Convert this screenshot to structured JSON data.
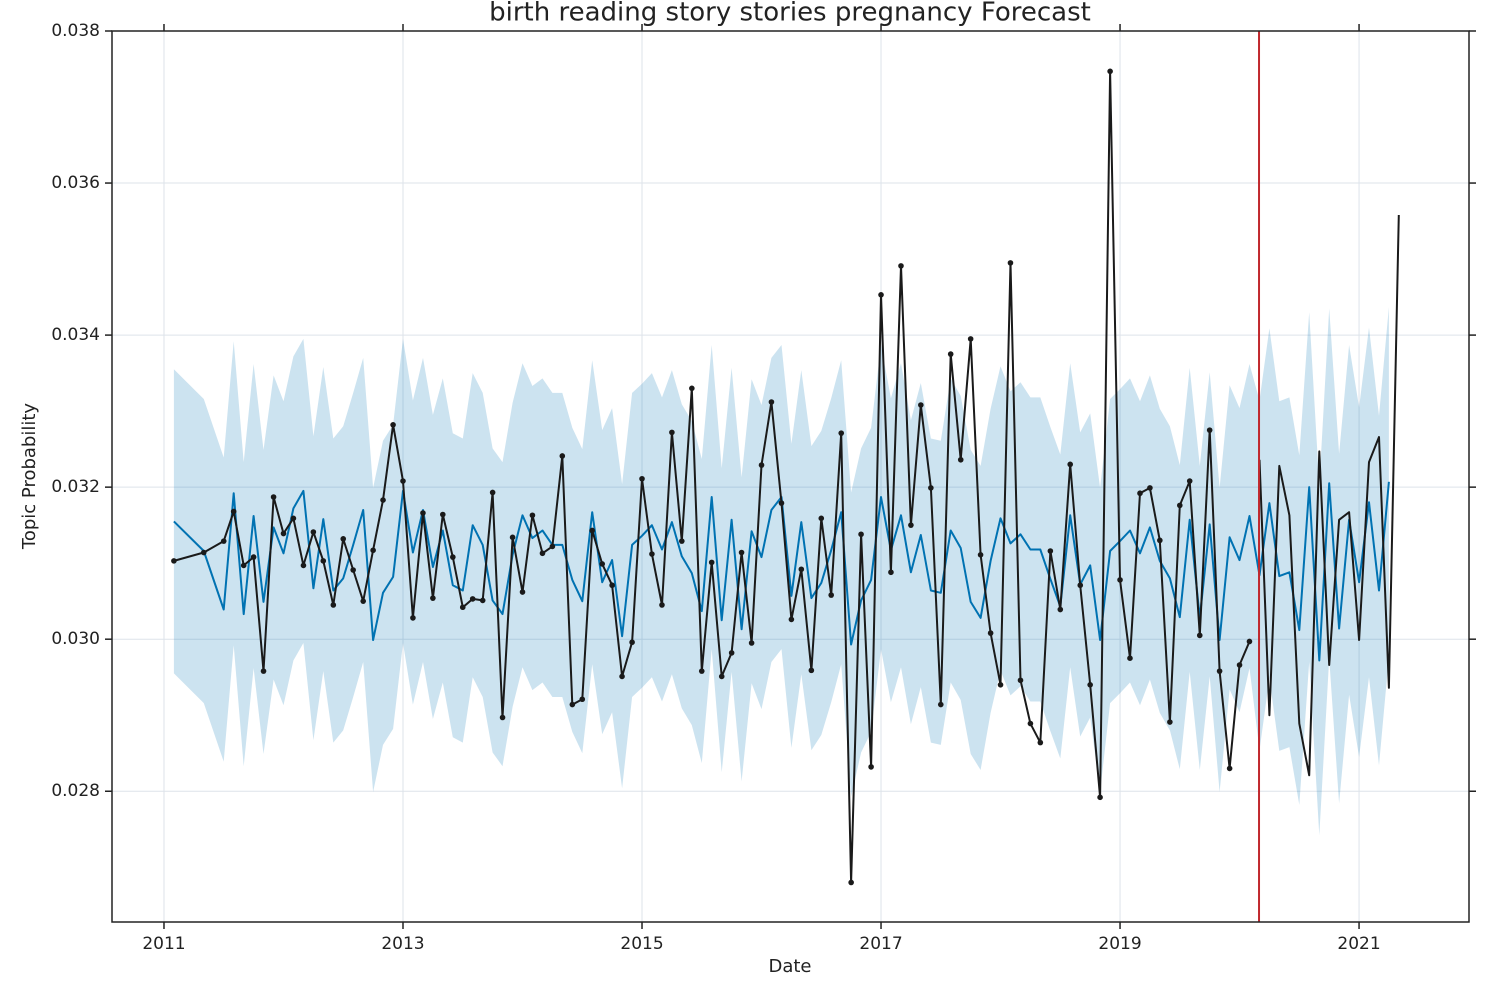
{
  "chart_data": {
    "type": "line",
    "title": "birth reading story stories pregnancy Forecast",
    "xlabel": "Date",
    "ylabel": "Topic Probability",
    "xlim": [
      2010.565,
      2021.92
    ],
    "ylim": [
      0.02628,
      0.038
    ],
    "xticks": [
      2011,
      2013,
      2015,
      2017,
      2019,
      2021
    ],
    "yticks": [
      0.028,
      {
        "value": 0.03,
        "label": "0.030"
      },
      0.032,
      0.034,
      0.036,
      0.038
    ],
    "grid": true,
    "band": {
      "color": "#0072b2",
      "opacity": 0.2,
      "x": [
        2011.083,
        2011.333,
        2011.5,
        2011.583,
        2011.667,
        2011.75,
        2011.833,
        2011.917,
        2012,
        2012.083,
        2012.167,
        2012.25,
        2012.333,
        2012.417,
        2012.5,
        2012.583,
        2012.667,
        2012.75,
        2012.833,
        2012.917,
        2013,
        2013.083,
        2013.167,
        2013.25,
        2013.333,
        2013.417,
        2013.5,
        2013.583,
        2013.667,
        2013.75,
        2013.833,
        2013.917,
        2014,
        2014.083,
        2014.167,
        2014.25,
        2014.333,
        2014.417,
        2014.5,
        2014.583,
        2014.667,
        2014.75,
        2014.833,
        2014.917,
        2015,
        2015.083,
        2015.167,
        2015.25,
        2015.333,
        2015.417,
        2015.5,
        2015.583,
        2015.667,
        2015.75,
        2015.833,
        2015.917,
        2016,
        2016.083,
        2016.167,
        2016.25,
        2016.333,
        2016.417,
        2016.5,
        2016.583,
        2016.667,
        2016.75,
        2016.833,
        2016.917,
        2017,
        2017.083,
        2017.167,
        2017.25,
        2017.333,
        2017.417,
        2017.5,
        2017.583,
        2017.667,
        2017.75,
        2017.833,
        2017.917,
        2018,
        2018.083,
        2018.167,
        2018.25,
        2018.333,
        2018.417,
        2018.5,
        2018.583,
        2018.667,
        2018.75,
        2018.833,
        2018.917,
        2019,
        2019.083,
        2019.167,
        2019.25,
        2019.333,
        2019.417,
        2019.5,
        2019.583,
        2019.667,
        2019.75,
        2019.833,
        2019.917,
        2020,
        2020.083,
        2020.167,
        2020.25,
        2020.333,
        2020.417,
        2020.5,
        2020.583,
        2020.667,
        2020.75,
        2020.833,
        2020.917,
        2021,
        2021.083,
        2021.167,
        2021.25
      ],
      "upper": [
        0.03355,
        0.03316,
        0.03239,
        0.03392,
        0.03233,
        0.03362,
        0.03249,
        0.03347,
        0.03313,
        0.03372,
        0.03395,
        0.03267,
        0.03358,
        0.03264,
        0.0328,
        0.03324,
        0.0337,
        0.03199,
        0.03261,
        0.03282,
        0.03395,
        0.03314,
        0.0337,
        0.03295,
        0.03343,
        0.03271,
        0.03264,
        0.0335,
        0.03324,
        0.03251,
        0.03233,
        0.03311,
        0.03363,
        0.03333,
        0.03343,
        0.03324,
        0.03324,
        0.03278,
        0.0325,
        0.03367,
        0.03275,
        0.03304,
        0.03204,
        0.03324,
        0.03336,
        0.0335,
        0.03318,
        0.03354,
        0.03309,
        0.03287,
        0.03237,
        0.03387,
        0.03225,
        0.03357,
        0.03213,
        0.03342,
        0.03308,
        0.0337,
        0.03387,
        0.03257,
        0.03354,
        0.03254,
        0.03274,
        0.03317,
        0.03367,
        0.03193,
        0.03251,
        0.03278,
        0.03387,
        0.03317,
        0.03363,
        0.03288,
        0.03337,
        0.03264,
        0.03261,
        0.03343,
        0.0332,
        0.03249,
        0.03228,
        0.03303,
        0.03359,
        0.03326,
        0.03338,
        0.03318,
        0.03318,
        0.03279,
        0.03243,
        0.03363,
        0.03272,
        0.03297,
        0.03199,
        0.03316,
        0.03329,
        0.03343,
        0.03313,
        0.03347,
        0.03303,
        0.0328,
        0.03229,
        0.03357,
        0.03228,
        0.03351,
        0.03199,
        0.03334,
        0.03304,
        0.03362,
        0.03314,
        0.03409,
        0.03313,
        0.03318,
        0.03242,
        0.0343,
        0.03202,
        0.03435,
        0.03244,
        0.03387,
        0.03305,
        0.0341,
        0.03294,
        0.03437
      ],
      "lower": [
        0.02955,
        0.02916,
        0.02839,
        0.02992,
        0.02833,
        0.02962,
        0.02849,
        0.02947,
        0.02913,
        0.02972,
        0.02995,
        0.02867,
        0.02958,
        0.02864,
        0.0288,
        0.02924,
        0.0297,
        0.02799,
        0.02861,
        0.02882,
        0.02995,
        0.02914,
        0.0297,
        0.02895,
        0.02943,
        0.02871,
        0.02864,
        0.0295,
        0.02924,
        0.02851,
        0.02833,
        0.02911,
        0.02963,
        0.02933,
        0.02943,
        0.02924,
        0.02924,
        0.02878,
        0.0285,
        0.02967,
        0.02875,
        0.02904,
        0.02804,
        0.02924,
        0.02936,
        0.0295,
        0.02918,
        0.02954,
        0.02909,
        0.02887,
        0.02837,
        0.02987,
        0.02825,
        0.02957,
        0.02813,
        0.02942,
        0.02908,
        0.0297,
        0.02987,
        0.02857,
        0.02954,
        0.02854,
        0.02874,
        0.02917,
        0.02967,
        0.02793,
        0.02851,
        0.02878,
        0.02987,
        0.02917,
        0.02963,
        0.02888,
        0.02937,
        0.02864,
        0.02861,
        0.02943,
        0.0292,
        0.02849,
        0.02828,
        0.02903,
        0.02959,
        0.02926,
        0.02938,
        0.02918,
        0.02918,
        0.02879,
        0.02843,
        0.02963,
        0.02872,
        0.02897,
        0.02799,
        0.02916,
        0.02929,
        0.02943,
        0.02913,
        0.02947,
        0.02903,
        0.0288,
        0.02829,
        0.02957,
        0.02828,
        0.02951,
        0.02799,
        0.02934,
        0.02904,
        0.02962,
        0.02854,
        0.02949,
        0.02853,
        0.02858,
        0.02782,
        0.0297,
        0.02742,
        0.02975,
        0.02784,
        0.02927,
        0.02845,
        0.0295,
        0.02834,
        0.02977
      ]
    },
    "series": [
      {
        "color": "#0072b2",
        "markers": false,
        "x": [
          2011.083,
          2011.333,
          2011.5,
          2011.583,
          2011.667,
          2011.75,
          2011.833,
          2011.917,
          2012,
          2012.083,
          2012.167,
          2012.25,
          2012.333,
          2012.417,
          2012.5,
          2012.583,
          2012.667,
          2012.75,
          2012.833,
          2012.917,
          2013,
          2013.083,
          2013.167,
          2013.25,
          2013.333,
          2013.417,
          2013.5,
          2013.583,
          2013.667,
          2013.75,
          2013.833,
          2013.917,
          2014,
          2014.083,
          2014.167,
          2014.25,
          2014.333,
          2014.417,
          2014.5,
          2014.583,
          2014.667,
          2014.75,
          2014.833,
          2014.917,
          2015,
          2015.083,
          2015.167,
          2015.25,
          2015.333,
          2015.417,
          2015.5,
          2015.583,
          2015.667,
          2015.75,
          2015.833,
          2015.917,
          2016,
          2016.083,
          2016.167,
          2016.25,
          2016.333,
          2016.417,
          2016.5,
          2016.583,
          2016.667,
          2016.75,
          2016.833,
          2016.917,
          2017,
          2017.083,
          2017.167,
          2017.25,
          2017.333,
          2017.417,
          2017.5,
          2017.583,
          2017.667,
          2017.75,
          2017.833,
          2017.917,
          2018,
          2018.083,
          2018.167,
          2018.25,
          2018.333,
          2018.417,
          2018.5,
          2018.583,
          2018.667,
          2018.75,
          2018.833,
          2018.917,
          2019,
          2019.083,
          2019.167,
          2019.25,
          2019.333,
          2019.417,
          2019.5,
          2019.583,
          2019.667,
          2019.75,
          2019.833,
          2019.917,
          2020,
          2020.083,
          2020.167,
          2020.25,
          2020.333,
          2020.417,
          2020.5,
          2020.583,
          2020.667,
          2020.75,
          2020.833,
          2020.917,
          2021,
          2021.083,
          2021.167,
          2021.25
        ],
        "values": [
          0.03155,
          0.03116,
          0.03039,
          0.03192,
          0.03033,
          0.03162,
          0.03049,
          0.03147,
          0.03113,
          0.03172,
          0.03195,
          0.03067,
          0.03158,
          0.03064,
          0.0308,
          0.03124,
          0.0317,
          0.02999,
          0.03061,
          0.03082,
          0.03195,
          0.03114,
          0.0317,
          0.03095,
          0.03143,
          0.03071,
          0.03064,
          0.0315,
          0.03124,
          0.03051,
          0.03033,
          0.03111,
          0.03163,
          0.03133,
          0.03143,
          0.03124,
          0.03124,
          0.03078,
          0.0305,
          0.03167,
          0.03075,
          0.03104,
          0.03004,
          0.03124,
          0.03136,
          0.0315,
          0.03118,
          0.03154,
          0.03109,
          0.03087,
          0.03037,
          0.03187,
          0.03025,
          0.03157,
          0.03013,
          0.03142,
          0.03108,
          0.0317,
          0.03187,
          0.03057,
          0.03154,
          0.03054,
          0.03074,
          0.03117,
          0.03167,
          0.02993,
          0.03051,
          0.03078,
          0.03187,
          0.03117,
          0.03163,
          0.03088,
          0.03137,
          0.03064,
          0.03061,
          0.03143,
          0.0312,
          0.03049,
          0.03028,
          0.03103,
          0.03159,
          0.03126,
          0.03138,
          0.03118,
          0.03118,
          0.03079,
          0.03043,
          0.03163,
          0.03072,
          0.03097,
          0.02999,
          0.03116,
          0.03129,
          0.03143,
          0.03113,
          0.03147,
          0.03103,
          0.0308,
          0.03029,
          0.03157,
          0.03028,
          0.03151,
          0.02999,
          0.03134,
          0.03104,
          0.03162,
          0.03084,
          0.03179,
          0.03083,
          0.03088,
          0.03012,
          0.032,
          0.02972,
          0.03205,
          0.03014,
          0.03157,
          0.03075,
          0.0318,
          0.03064,
          0.03207
        ]
      },
      {
        "color": "#1a1a1a",
        "markers": true,
        "x": [
          2011.083,
          2011.333,
          2011.5,
          2011.583,
          2011.667,
          2011.75,
          2011.833,
          2011.917,
          2012,
          2012.083,
          2012.167,
          2012.25,
          2012.333,
          2012.417,
          2012.5,
          2012.583,
          2012.667,
          2012.75,
          2012.833,
          2012.917,
          2013,
          2013.083,
          2013.167,
          2013.25,
          2013.333,
          2013.417,
          2013.5,
          2013.583,
          2013.667,
          2013.75,
          2013.833,
          2013.917,
          2014,
          2014.083,
          2014.167,
          2014.25,
          2014.333,
          2014.417,
          2014.5,
          2014.583,
          2014.667,
          2014.75,
          2014.833,
          2014.917,
          2015,
          2015.083,
          2015.167,
          2015.25,
          2015.333,
          2015.417,
          2015.5,
          2015.583,
          2015.667,
          2015.75,
          2015.833,
          2015.917,
          2016,
          2016.083,
          2016.167,
          2016.25,
          2016.333,
          2016.417,
          2016.5,
          2016.583,
          2016.667,
          2016.75,
          2016.833,
          2016.917,
          2017,
          2017.083,
          2017.167,
          2017.25,
          2017.333,
          2017.417,
          2017.5,
          2017.583,
          2017.667,
          2017.75,
          2017.833,
          2017.917,
          2018,
          2018.083,
          2018.167,
          2018.25,
          2018.333,
          2018.417,
          2018.5,
          2018.583,
          2018.667,
          2018.75,
          2018.833,
          2018.917,
          2019,
          2019.083,
          2019.167,
          2019.25,
          2019.333,
          2019.417,
          2019.5,
          2019.583,
          2019.667,
          2019.75,
          2019.833,
          2019.917,
          2020,
          2020.083
        ],
        "values": [
          0.03103,
          0.03114,
          0.03129,
          0.03168,
          0.03097,
          0.03108,
          0.02958,
          0.03187,
          0.03139,
          0.03159,
          0.03097,
          0.03141,
          0.03103,
          0.03045,
          0.03132,
          0.03091,
          0.0305,
          0.03117,
          0.03183,
          0.03282,
          0.03208,
          0.03028,
          0.03166,
          0.03054,
          0.03164,
          0.03108,
          0.03042,
          0.03053,
          0.03051,
          0.03193,
          0.02897,
          0.03134,
          0.03062,
          0.03163,
          0.03113,
          0.03122,
          0.03241,
          0.02914,
          0.02921,
          0.03143,
          0.03099,
          0.03071,
          0.02951,
          0.02996,
          0.03211,
          0.03112,
          0.03045,
          0.03272,
          0.03129,
          0.0333,
          0.02958,
          0.03101,
          0.02951,
          0.02982,
          0.03114,
          0.02995,
          0.03229,
          0.03312,
          0.03179,
          0.03026,
          0.03092,
          0.02959,
          0.03159,
          0.03058,
          0.03271,
          0.0268,
          0.03138,
          0.02832,
          0.03453,
          0.03088,
          0.03491,
          0.0315,
          0.03308,
          0.03199,
          0.02914,
          0.03375,
          0.03236,
          0.03395,
          0.03111,
          0.03008,
          0.0294,
          0.03495,
          0.02946,
          0.02889,
          0.02864,
          0.03116,
          0.03039,
          0.0323,
          0.03071,
          0.0294,
          0.02792,
          0.03747,
          0.03078,
          0.02975,
          0.03192,
          0.03199,
          0.0313,
          0.02891,
          0.03176,
          0.03208,
          0.03005,
          0.03275,
          0.02958,
          0.0283,
          0.02966,
          0.02997
        ]
      },
      {
        "color": "#1a1a1a",
        "markers": false,
        "x": [
          2020.167,
          2020.25,
          2020.333,
          2020.417,
          2020.5,
          2020.583,
          2020.667,
          2020.75,
          2020.833,
          2020.917,
          2021,
          2021.083,
          2021.167,
          2021.25,
          2021.333
        ],
        "values": [
          0.03236,
          0.029,
          0.03228,
          0.03163,
          0.02889,
          0.02821,
          0.03247,
          0.02966,
          0.03157,
          0.03167,
          0.02999,
          0.03233,
          0.03266,
          0.02936,
          0.03558
        ]
      }
    ],
    "vline": {
      "x": 2020.163,
      "color": "#c0282d"
    }
  }
}
